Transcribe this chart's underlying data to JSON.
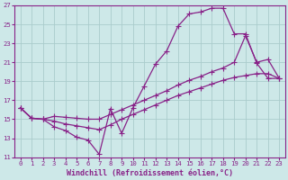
{
  "xlabel": "Windchill (Refroidissement éolien,°C)",
  "bg_color": "#cde8e8",
  "line_color": "#882288",
  "grid_color": "#aacccc",
  "xlim": [
    -0.5,
    23.5
  ],
  "ylim": [
    11,
    27
  ],
  "xticks": [
    0,
    1,
    2,
    3,
    4,
    5,
    6,
    7,
    8,
    9,
    10,
    11,
    12,
    13,
    14,
    15,
    16,
    17,
    18,
    19,
    20,
    21,
    22,
    23
  ],
  "yticks": [
    11,
    13,
    15,
    17,
    19,
    21,
    23,
    25,
    27
  ],
  "line1_x": [
    0,
    1,
    2,
    3,
    4,
    5,
    6,
    7,
    8,
    9,
    10,
    11,
    12,
    13,
    14,
    15,
    16,
    17,
    18,
    19,
    20,
    21,
    22,
    23
  ],
  "line1_y": [
    16.2,
    15.1,
    15.0,
    14.2,
    13.8,
    13.1,
    12.8,
    11.3,
    16.1,
    13.5,
    16.2,
    18.5,
    20.8,
    22.2,
    24.8,
    26.1,
    26.3,
    26.7,
    26.7,
    24.0,
    24.0,
    20.9,
    19.3,
    19.3
  ],
  "line2_x": [
    0,
    1,
    2,
    3,
    4,
    5,
    6,
    7,
    8,
    9,
    10,
    11,
    12,
    13,
    14,
    15,
    16,
    17,
    18,
    19,
    20,
    21,
    22,
    23
  ],
  "line2_y": [
    16.2,
    15.1,
    15.0,
    15.3,
    15.2,
    15.1,
    15.0,
    15.0,
    15.5,
    16.0,
    16.5,
    17.0,
    17.5,
    18.0,
    18.6,
    19.1,
    19.5,
    20.0,
    20.4,
    21.0,
    23.8,
    21.0,
    21.3,
    19.3
  ],
  "line3_x": [
    0,
    1,
    2,
    3,
    4,
    5,
    6,
    7,
    8,
    9,
    10,
    11,
    12,
    13,
    14,
    15,
    16,
    17,
    18,
    19,
    20,
    21,
    22,
    23
  ],
  "line3_y": [
    16.2,
    15.1,
    15.0,
    14.8,
    14.5,
    14.3,
    14.1,
    13.9,
    14.4,
    15.0,
    15.5,
    16.0,
    16.5,
    17.0,
    17.5,
    17.9,
    18.3,
    18.7,
    19.1,
    19.4,
    19.6,
    19.8,
    19.8,
    19.3
  ],
  "marker": "+",
  "markersize": 4,
  "linewidth": 0.9,
  "tick_fontsize": 5.2,
  "xlabel_fontsize": 6.0
}
